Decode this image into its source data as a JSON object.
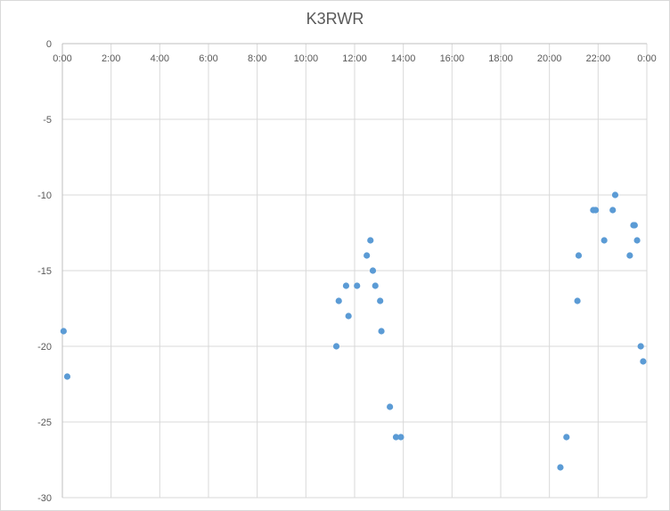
{
  "chart_data": {
    "type": "scatter",
    "title": "K3RWR",
    "xlabel": "",
    "ylabel": "",
    "xlim": [
      0,
      24
    ],
    "ylim": [
      -30,
      0
    ],
    "x_unit": "hours of day",
    "x_tick_labels": [
      "0:00",
      "2:00",
      "4:00",
      "6:00",
      "8:00",
      "10:00",
      "12:00",
      "14:00",
      "16:00",
      "18:00",
      "20:00",
      "22:00",
      "0:00"
    ],
    "y_ticks": [
      0,
      -5,
      -10,
      -15,
      -20,
      -25,
      -30
    ],
    "grid": true,
    "legend": "none",
    "marker_color": "#5b9bd5",
    "series": [
      {
        "x": [
          0.05,
          0.2,
          11.25,
          11.35,
          11.65,
          11.75,
          12.1,
          12.5,
          12.65,
          12.75,
          12.85,
          13.05,
          13.1,
          13.45,
          13.7,
          13.9,
          20.45,
          20.7,
          21.15,
          21.2,
          21.8,
          21.9,
          22.25,
          22.6,
          22.7,
          23.3,
          23.45,
          23.5,
          23.6,
          23.75,
          23.85
        ],
        "y": [
          -19,
          -22,
          -20,
          -17,
          -16,
          -18,
          -16,
          -14,
          -13,
          -15,
          -16,
          -17,
          -19,
          -24,
          -26,
          -26,
          -28,
          -26,
          -17,
          -14,
          -11,
          -11,
          -13,
          -11,
          -10,
          -14,
          -12,
          -12,
          -13,
          -20,
          -21
        ]
      }
    ]
  }
}
